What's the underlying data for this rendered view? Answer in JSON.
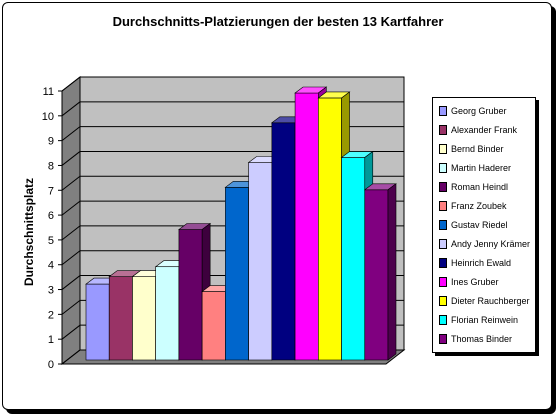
{
  "chart_data": {
    "type": "bar",
    "title": "Durchschnitts-Platzierungen  der besten  13  Kartfahrer",
    "xlabel": "",
    "ylabel": "Durchschnittsplatz",
    "ylim": [
      0,
      11
    ],
    "yticks": [
      0,
      1,
      2,
      3,
      4,
      5,
      6,
      7,
      8,
      9,
      10,
      11
    ],
    "grid": true,
    "legend_position": "right",
    "series": [
      {
        "name": "Georg Gruber",
        "value": 3.3,
        "color": "#9999ff"
      },
      {
        "name": "Alexander Frank",
        "value": 3.6,
        "color": "#993366"
      },
      {
        "name": "Bernd Binder",
        "value": 3.6,
        "color": "#ffffcc"
      },
      {
        "name": "Martin Haderer",
        "value": 4.0,
        "color": "#ccffff"
      },
      {
        "name": "Roman Heindl",
        "value": 5.5,
        "color": "#660066"
      },
      {
        "name": "Franz Zoubek",
        "value": 3.0,
        "color": "#ff8080"
      },
      {
        "name": "Gustav Riedel",
        "value": 7.2,
        "color": "#0066cc"
      },
      {
        "name": "Andy Jenny Krämer",
        "value": 8.2,
        "color": "#ccccff"
      },
      {
        "name": "Heinrich Ewald",
        "value": 9.8,
        "color": "#000080"
      },
      {
        "name": "Ines Gruber",
        "value": 11.0,
        "color": "#ff00ff"
      },
      {
        "name": "Dieter Rauchberger",
        "value": 10.8,
        "color": "#ffff00"
      },
      {
        "name": "Florian Reinwein",
        "value": 8.4,
        "color": "#00ffff"
      },
      {
        "name": "Thomas Binder",
        "value": 7.1,
        "color": "#800080"
      }
    ]
  }
}
